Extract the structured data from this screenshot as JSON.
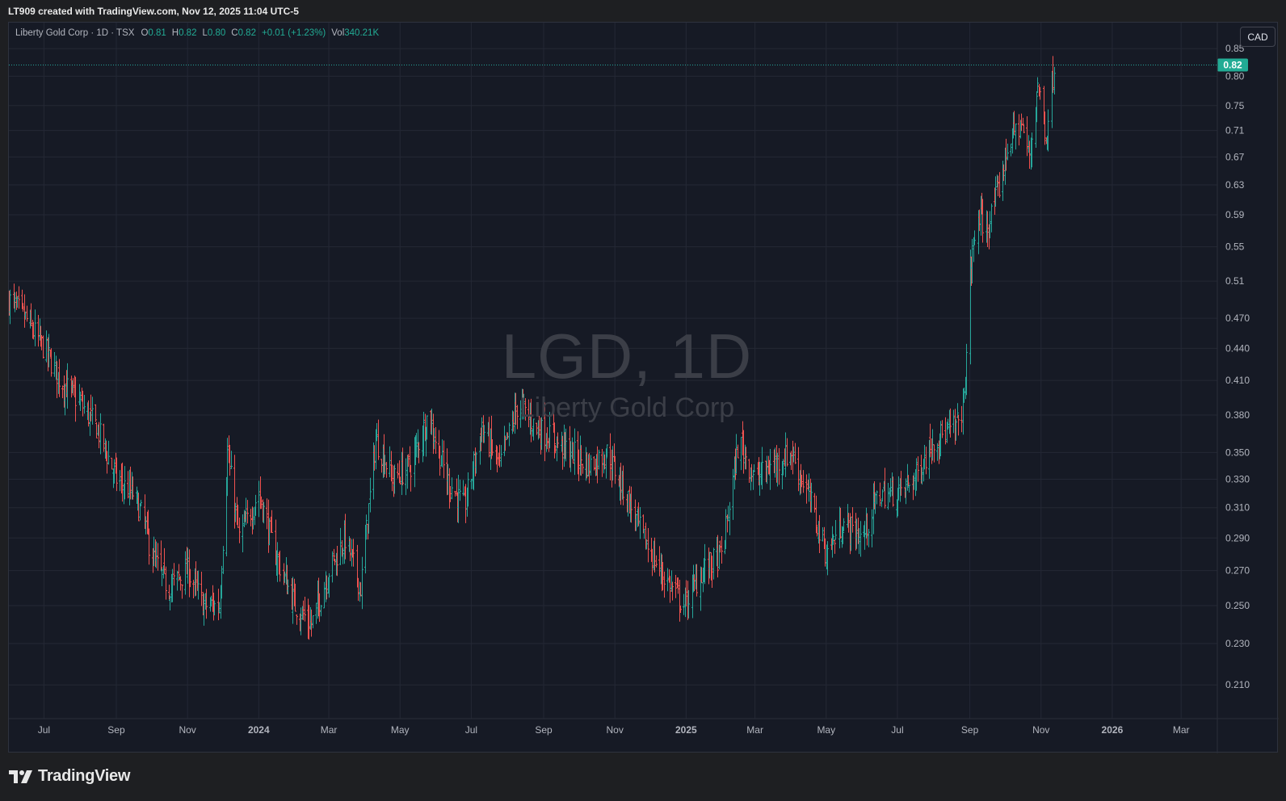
{
  "header_text": "LT909 created with TradingView.com, Nov 12, 2025 11:04 UTC-5",
  "legend": {
    "symbol": "Liberty Gold Corp · 1D · TSX",
    "o_label": "O",
    "o_value": "0.81",
    "h_label": "H",
    "h_value": "0.82",
    "l_label": "L",
    "l_value": "0.80",
    "c_label": "C",
    "c_value": "0.82",
    "change": "+0.01 (+1.23%)",
    "vol_label": "Vol",
    "vol_value": "340.21K"
  },
  "currency_button": "CAD",
  "watermark": {
    "title": "LGD, 1D",
    "subtitle": "Liberty Gold Corp"
  },
  "footer_brand": "TradingView",
  "colors": {
    "up": "#26a69a",
    "down": "#ef5350",
    "last_price_bg": "#22ab94",
    "background": "#161a25"
  },
  "chart_data": {
    "type": "ohlc",
    "symbol": "LGD",
    "interval": "1D",
    "y_scale": "log",
    "ylim": [
      0.195,
      0.9
    ],
    "y_ticks": [
      "0.85",
      "0.80",
      "0.75",
      "0.71",
      "0.67",
      "0.63",
      "0.59",
      "0.55",
      "0.51",
      "0.470",
      "0.440",
      "0.410",
      "0.380",
      "0.350",
      "0.330",
      "0.310",
      "0.290",
      "0.270",
      "0.250",
      "0.230",
      "0.210"
    ],
    "x_ticks": [
      "Jul",
      "Sep",
      "Nov",
      "2024",
      "Mar",
      "May",
      "Jul",
      "Sep",
      "Nov",
      "2025",
      "Mar",
      "May",
      "Jul",
      "Sep",
      "Nov",
      "2026",
      "Mar"
    ],
    "x_range": [
      "2023-06-01",
      "2026-04-01"
    ],
    "last_price": 0.82,
    "last_price_label": "0.82",
    "close_path": [
      [
        "2023-06-01",
        0.49
      ],
      [
        "2023-06-15",
        0.47
      ],
      [
        "2023-07-01",
        0.44
      ],
      [
        "2023-07-15",
        0.41
      ],
      [
        "2023-08-01",
        0.39
      ],
      [
        "2023-08-15",
        0.37
      ],
      [
        "2023-09-01",
        0.33
      ],
      [
        "2023-09-15",
        0.32
      ],
      [
        "2023-09-25",
        0.3
      ],
      [
        "2023-10-01",
        0.28
      ],
      [
        "2023-10-15",
        0.26
      ],
      [
        "2023-11-01",
        0.27
      ],
      [
        "2023-11-15",
        0.25
      ],
      [
        "2023-11-28",
        0.25
      ],
      [
        "2023-12-05",
        0.35
      ],
      [
        "2023-12-15",
        0.29
      ],
      [
        "2024-01-01",
        0.32
      ],
      [
        "2024-01-15",
        0.28
      ],
      [
        "2024-02-01",
        0.25
      ],
      [
        "2024-02-15",
        0.24
      ],
      [
        "2024-03-01",
        0.27
      ],
      [
        "2024-03-15",
        0.29
      ],
      [
        "2024-03-28",
        0.26
      ],
      [
        "2024-04-10",
        0.36
      ],
      [
        "2024-04-25",
        0.33
      ],
      [
        "2024-05-10",
        0.34
      ],
      [
        "2024-05-25",
        0.38
      ],
      [
        "2024-06-10",
        0.33
      ],
      [
        "2024-06-25",
        0.31
      ],
      [
        "2024-07-10",
        0.37
      ],
      [
        "2024-07-25",
        0.34
      ],
      [
        "2024-08-10",
        0.39
      ],
      [
        "2024-08-25",
        0.37
      ],
      [
        "2024-09-10",
        0.36
      ],
      [
        "2024-09-25",
        0.35
      ],
      [
        "2024-10-10",
        0.34
      ],
      [
        "2024-10-25",
        0.35
      ],
      [
        "2024-11-10",
        0.32
      ],
      [
        "2024-11-25",
        0.29
      ],
      [
        "2024-12-10",
        0.27
      ],
      [
        "2024-12-30",
        0.25
      ],
      [
        "2025-01-15",
        0.27
      ],
      [
        "2025-02-01",
        0.28
      ],
      [
        "2025-02-15",
        0.36
      ],
      [
        "2025-03-01",
        0.33
      ],
      [
        "2025-03-15",
        0.34
      ],
      [
        "2025-04-01",
        0.35
      ],
      [
        "2025-04-15",
        0.32
      ],
      [
        "2025-05-01",
        0.28
      ],
      [
        "2025-05-15",
        0.3
      ],
      [
        "2025-06-01",
        0.29
      ],
      [
        "2025-06-15",
        0.32
      ],
      [
        "2025-07-01",
        0.32
      ],
      [
        "2025-07-15",
        0.33
      ],
      [
        "2025-08-01",
        0.36
      ],
      [
        "2025-08-20",
        0.37
      ],
      [
        "2025-08-27",
        0.39
      ],
      [
        "2025-09-01",
        0.52
      ],
      [
        "2025-09-08",
        0.59
      ],
      [
        "2025-09-15",
        0.57
      ],
      [
        "2025-09-25",
        0.62
      ],
      [
        "2025-10-05",
        0.7
      ],
      [
        "2025-10-15",
        0.72
      ],
      [
        "2025-10-22",
        0.67
      ],
      [
        "2025-10-29",
        0.79
      ],
      [
        "2025-11-05",
        0.7
      ],
      [
        "2025-11-12",
        0.82
      ]
    ]
  }
}
